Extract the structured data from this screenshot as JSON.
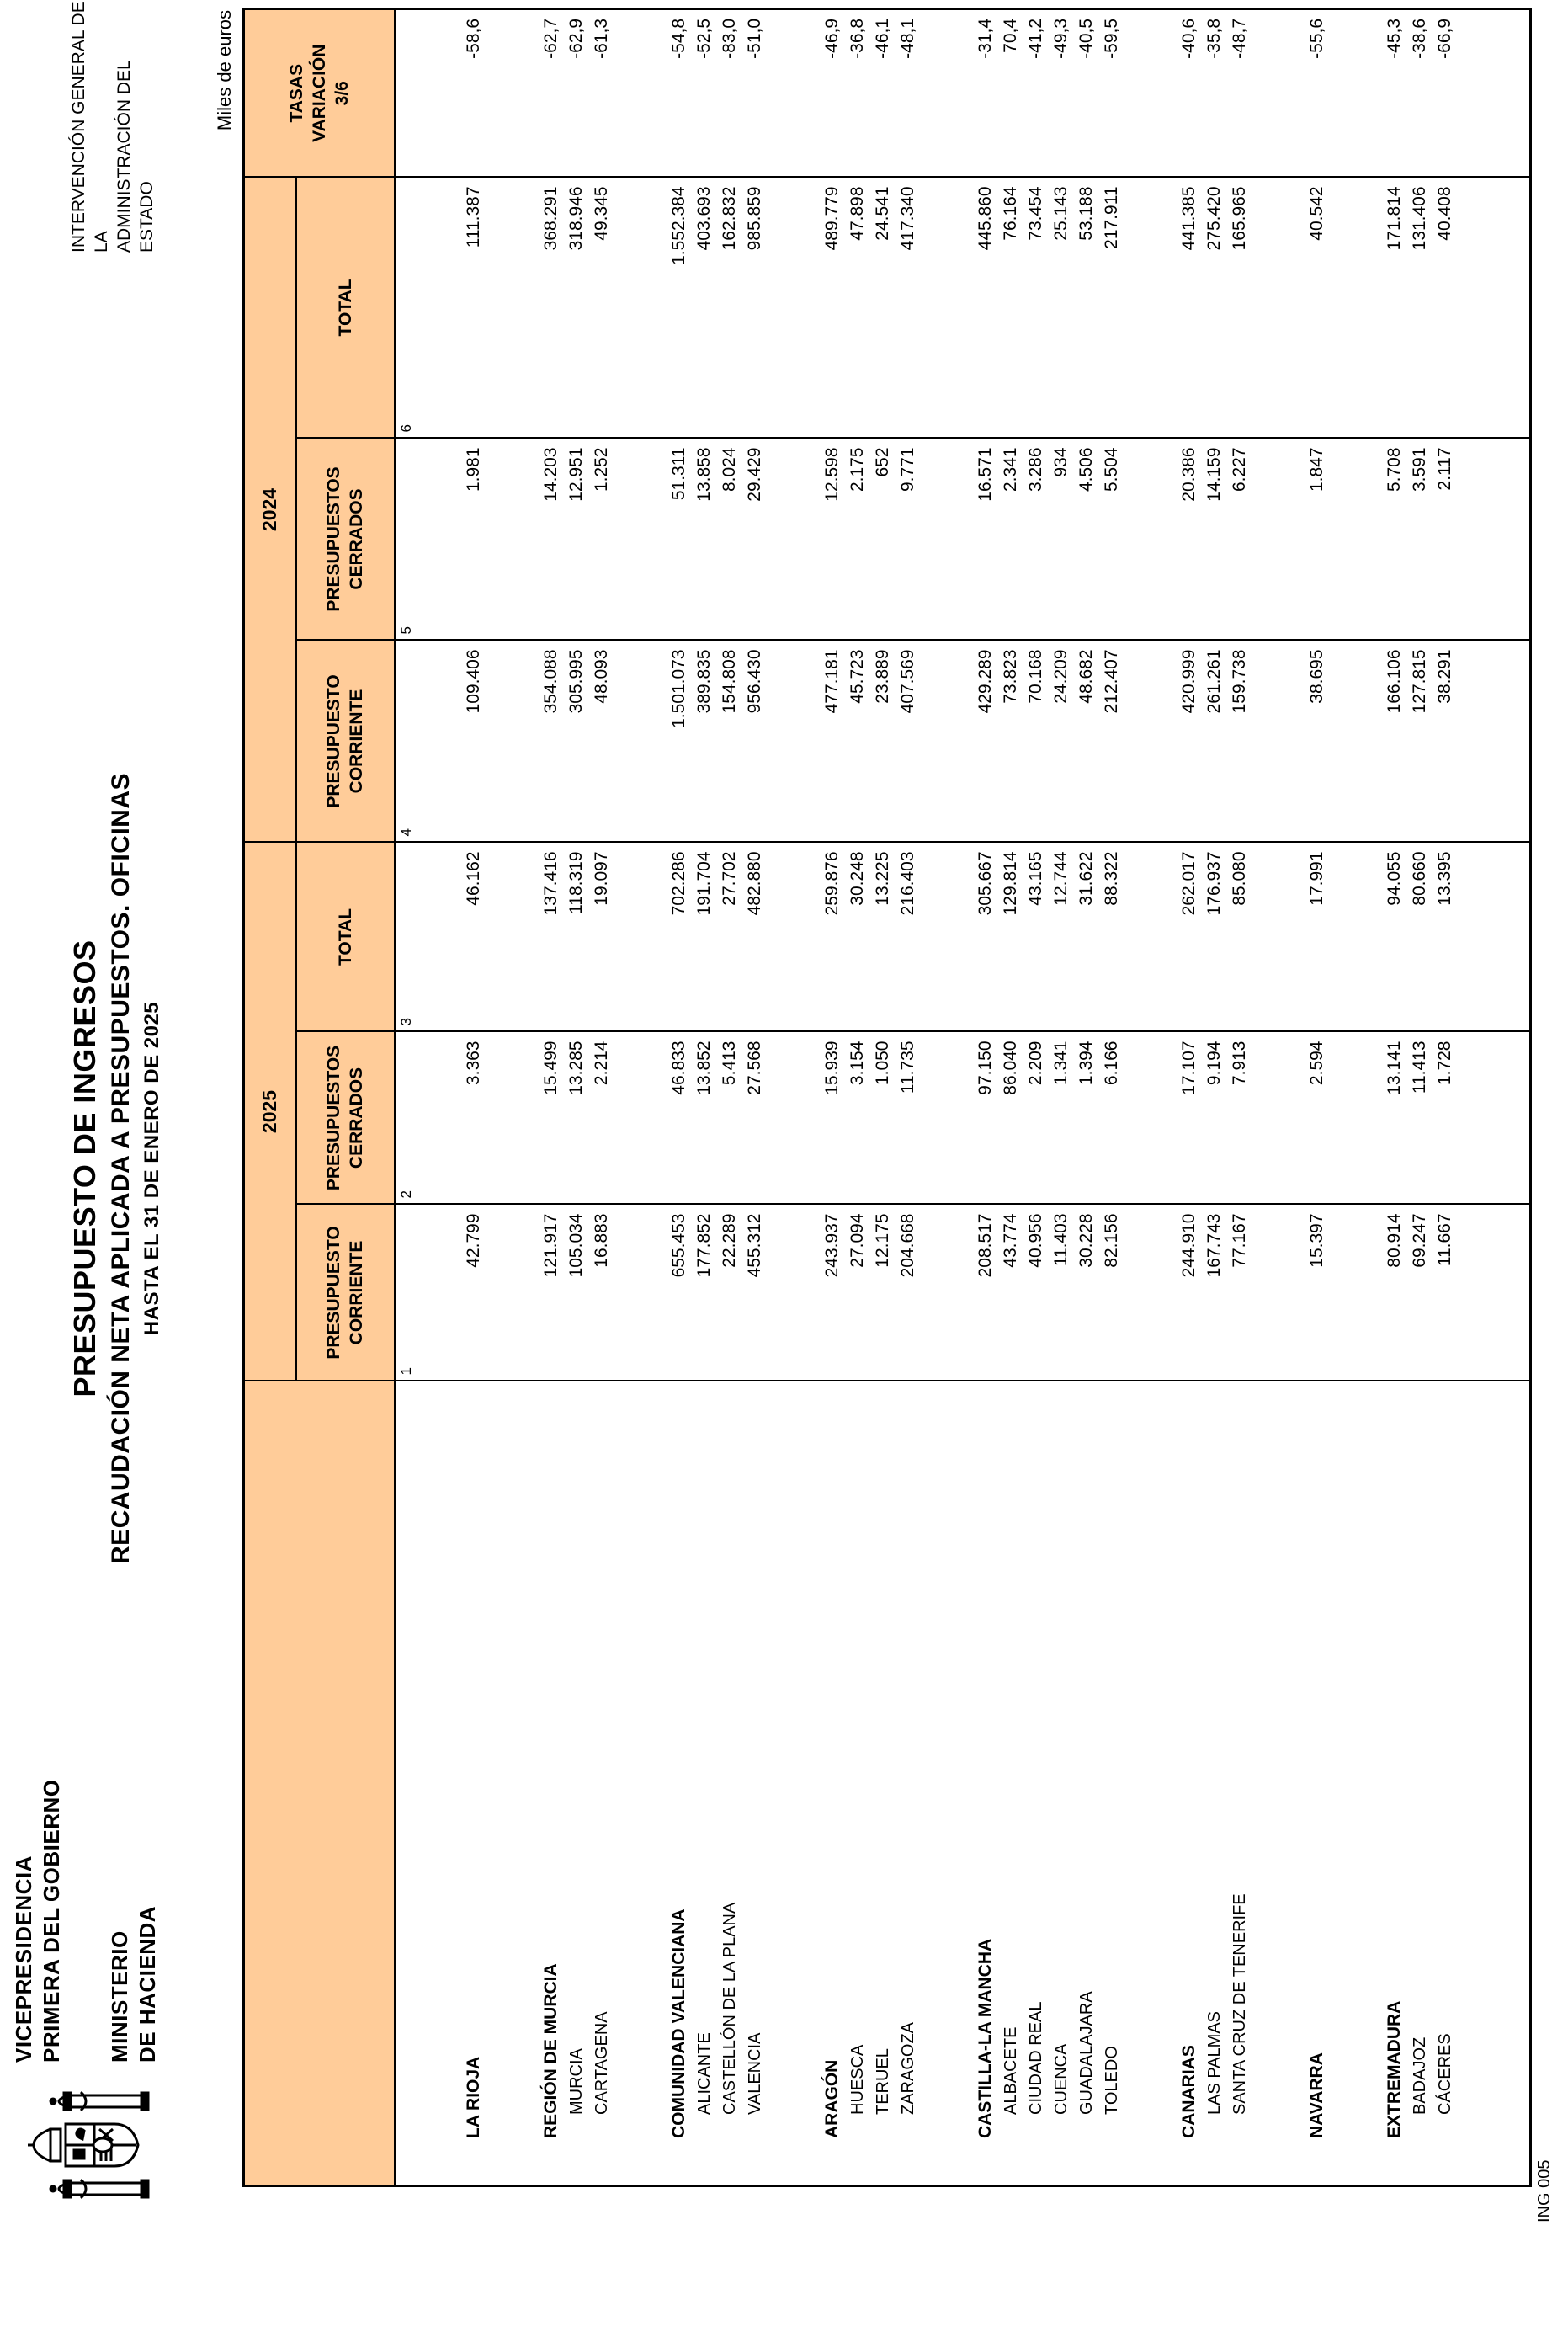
{
  "header": {
    "ministry": {
      "line1": "VICEPRESIDENCIA",
      "line2": "PRIMERA DEL GOBIERNO",
      "line3": "MINISTERIO",
      "line4": "DE HACIENDA"
    },
    "title": {
      "line1": "PRESUPUESTO DE INGRESOS",
      "line2": "RECAUDACIÓN NETA APLICADA A PRESUPUESTOS. OFICINAS",
      "line3": "HASTA EL 31 DE ENERO DE 2025"
    },
    "agency": {
      "line1": "INTERVENCIÓN GENERAL DE LA",
      "line2": "ADMINISTRACIÓN DEL ESTADO"
    },
    "units_note": "Miles de euros",
    "logo": "spain-coat-of-arms"
  },
  "footer": {
    "form_code": "ING 005"
  },
  "colors": {
    "header_fill": "#FFCC99",
    "border": "#000000",
    "text": "#000000",
    "page": "#FFFFFF"
  },
  "table": {
    "year_groups": [
      {
        "year": "2025",
        "measures": [
          [
            "PRESUPUESTO",
            "CORRIENTE"
          ],
          [
            "PRESUPUESTOS",
            "CERRADOS"
          ],
          [
            "TOTAL"
          ]
        ]
      },
      {
        "year": "2024",
        "measures": [
          [
            "PRESUPUESTO",
            "CORRIENTE"
          ],
          [
            "PRESUPUESTOS",
            "CERRADOS"
          ],
          [
            "TOTAL"
          ]
        ]
      }
    ],
    "tasas_header": [
      "TASAS",
      "VARIACIÓN",
      "3/6"
    ],
    "column_numbers": [
      "1",
      "2",
      "3",
      "4",
      "5",
      "6"
    ],
    "rows": [
      {
        "name": "LA RIOJA",
        "group": true,
        "values": [
          "42.799",
          "3.363",
          "46.162",
          "109.406",
          "1.981",
          "111.387",
          "-58,6"
        ]
      },
      {
        "name": "REGIÓN DE MURCIA",
        "group": true,
        "values": [
          "121.917",
          "15.499",
          "137.416",
          "354.088",
          "14.203",
          "368.291",
          "-62,7"
        ]
      },
      {
        "name": "MURCIA",
        "group": false,
        "values": [
          "105.034",
          "13.285",
          "118.319",
          "305.995",
          "12.951",
          "318.946",
          "-62,9"
        ]
      },
      {
        "name": "CARTAGENA",
        "group": false,
        "values": [
          "16.883",
          "2.214",
          "19.097",
          "48.093",
          "1.252",
          "49.345",
          "-61,3"
        ]
      },
      {
        "name": "COMUNIDAD VALENCIANA",
        "group": true,
        "values": [
          "655.453",
          "46.833",
          "702.286",
          "1.501.073",
          "51.311",
          "1.552.384",
          "-54,8"
        ]
      },
      {
        "name": "ALICANTE",
        "group": false,
        "values": [
          "177.852",
          "13.852",
          "191.704",
          "389.835",
          "13.858",
          "403.693",
          "-52,5"
        ]
      },
      {
        "name": "CASTELLÓN DE LA PLANA",
        "group": false,
        "values": [
          "22.289",
          "5.413",
          "27.702",
          "154.808",
          "8.024",
          "162.832",
          "-83,0"
        ]
      },
      {
        "name": "VALENCIA",
        "group": false,
        "values": [
          "455.312",
          "27.568",
          "482.880",
          "956.430",
          "29.429",
          "985.859",
          "-51,0"
        ]
      },
      {
        "name": "ARAGÓN",
        "group": true,
        "values": [
          "243.937",
          "15.939",
          "259.876",
          "477.181",
          "12.598",
          "489.779",
          "-46,9"
        ]
      },
      {
        "name": "HUESCA",
        "group": false,
        "values": [
          "27.094",
          "3.154",
          "30.248",
          "45.723",
          "2.175",
          "47.898",
          "-36,8"
        ]
      },
      {
        "name": "TERUEL",
        "group": false,
        "values": [
          "12.175",
          "1.050",
          "13.225",
          "23.889",
          "652",
          "24.541",
          "-46,1"
        ]
      },
      {
        "name": "ZARAGOZA",
        "group": false,
        "values": [
          "204.668",
          "11.735",
          "216.403",
          "407.569",
          "9.771",
          "417.340",
          "-48,1"
        ]
      },
      {
        "name": "CASTILLA-LA MANCHA",
        "group": true,
        "values": [
          "208.517",
          "97.150",
          "305.667",
          "429.289",
          "16.571",
          "445.860",
          "-31,4"
        ]
      },
      {
        "name": "ALBACETE",
        "group": false,
        "values": [
          "43.774",
          "86.040",
          "129.814",
          "73.823",
          "2.341",
          "76.164",
          "70,4"
        ]
      },
      {
        "name": "CIUDAD REAL",
        "group": false,
        "values": [
          "40.956",
          "2.209",
          "43.165",
          "70.168",
          "3.286",
          "73.454",
          "-41,2"
        ]
      },
      {
        "name": "CUENCA",
        "group": false,
        "values": [
          "11.403",
          "1.341",
          "12.744",
          "24.209",
          "934",
          "25.143",
          "-49,3"
        ]
      },
      {
        "name": "GUADALAJARA",
        "group": false,
        "values": [
          "30.228",
          "1.394",
          "31.622",
          "48.682",
          "4.506",
          "53.188",
          "-40,5"
        ]
      },
      {
        "name": "TOLEDO",
        "group": false,
        "values": [
          "82.156",
          "6.166",
          "88.322",
          "212.407",
          "5.504",
          "217.911",
          "-59,5"
        ]
      },
      {
        "name": "CANARIAS",
        "group": true,
        "values": [
          "244.910",
          "17.107",
          "262.017",
          "420.999",
          "20.386",
          "441.385",
          "-40,6"
        ]
      },
      {
        "name": "LAS PALMAS",
        "group": false,
        "values": [
          "167.743",
          "9.194",
          "176.937",
          "261.261",
          "14.159",
          "275.420",
          "-35,8"
        ]
      },
      {
        "name": "SANTA CRUZ DE TENERIFE",
        "group": false,
        "values": [
          "77.167",
          "7.913",
          "85.080",
          "159.738",
          "6.227",
          "165.965",
          "-48,7"
        ]
      },
      {
        "name": "NAVARRA",
        "group": true,
        "values": [
          "15.397",
          "2.594",
          "17.991",
          "38.695",
          "1.847",
          "40.542",
          "-55,6"
        ]
      },
      {
        "name": "EXTREMADURA",
        "group": true,
        "values": [
          "80.914",
          "13.141",
          "94.055",
          "166.106",
          "5.708",
          "171.814",
          "-45,3"
        ]
      },
      {
        "name": "BADAJOZ",
        "group": false,
        "values": [
          "69.247",
          "11.413",
          "80.660",
          "127.815",
          "3.591",
          "131.406",
          "-38,6"
        ]
      },
      {
        "name": "CÁCERES",
        "group": false,
        "values": [
          "11.667",
          "1.728",
          "13.395",
          "38.291",
          "2.117",
          "40.408",
          "-66,9"
        ]
      }
    ]
  }
}
